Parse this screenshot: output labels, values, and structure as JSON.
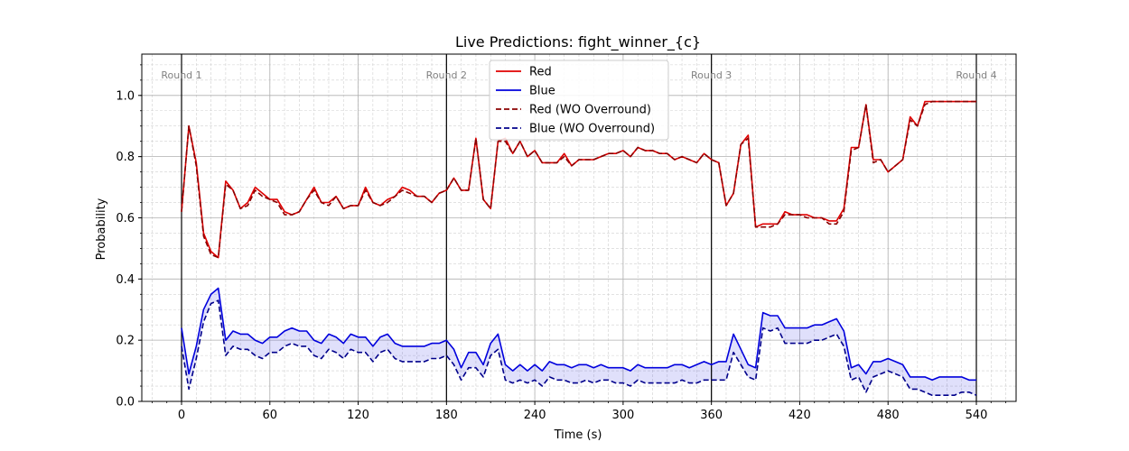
{
  "chart_data": {
    "type": "line",
    "title": "Live Predictions: fight_winner_{c}",
    "xlabel": "Time (s)",
    "ylabel": "Probability",
    "xlim": [
      -27,
      567
    ],
    "ylim": [
      0,
      1.135
    ],
    "xticks": [
      0,
      60,
      120,
      180,
      240,
      300,
      360,
      420,
      480,
      540
    ],
    "xtick_labels": [
      "0",
      "60",
      "120",
      "180",
      "240",
      "300",
      "360",
      "420",
      "480",
      "540"
    ],
    "yticks": [
      0.0,
      0.2,
      0.4,
      0.6,
      0.8,
      1.0
    ],
    "ytick_labels": [
      "0.0",
      "0.2",
      "0.4",
      "0.6",
      "0.8",
      "1.0"
    ],
    "grid": "major solid, minor dashed",
    "legend_position": "top-center",
    "round_markers": [
      {
        "x": 0,
        "label": "Round 1"
      },
      {
        "x": 180,
        "label": "Round 2"
      },
      {
        "x": 360,
        "label": "Round 3"
      },
      {
        "x": 540,
        "label": "Round 4"
      }
    ],
    "x": [
      0,
      5,
      10,
      15,
      20,
      25,
      30,
      35,
      40,
      45,
      50,
      55,
      60,
      65,
      70,
      75,
      80,
      85,
      90,
      95,
      100,
      105,
      110,
      115,
      120,
      125,
      130,
      135,
      140,
      145,
      150,
      155,
      160,
      165,
      170,
      175,
      180,
      185,
      190,
      195,
      200,
      205,
      210,
      215,
      220,
      225,
      230,
      235,
      240,
      245,
      250,
      255,
      260,
      265,
      270,
      275,
      280,
      285,
      290,
      295,
      300,
      305,
      310,
      315,
      320,
      325,
      330,
      335,
      340,
      345,
      350,
      355,
      360,
      365,
      370,
      375,
      380,
      385,
      390,
      395,
      400,
      405,
      410,
      415,
      420,
      425,
      430,
      435,
      440,
      445,
      450,
      455,
      460,
      465,
      470,
      475,
      480,
      485,
      490,
      495,
      500,
      505,
      510,
      515,
      520,
      525,
      530,
      535,
      540
    ],
    "series": [
      {
        "name": "Red",
        "color": "#e00000",
        "style": "solid",
        "values": [
          0.62,
          0.9,
          0.78,
          0.55,
          0.49,
          0.47,
          0.72,
          0.69,
          0.63,
          0.65,
          0.7,
          0.68,
          0.66,
          0.66,
          0.62,
          0.61,
          0.62,
          0.66,
          0.7,
          0.65,
          0.65,
          0.67,
          0.63,
          0.64,
          0.64,
          0.7,
          0.65,
          0.64,
          0.66,
          0.67,
          0.7,
          0.69,
          0.67,
          0.67,
          0.65,
          0.68,
          0.69,
          0.73,
          0.69,
          0.69,
          0.86,
          0.66,
          0.63,
          0.85,
          0.86,
          0.81,
          0.85,
          0.8,
          0.82,
          0.78,
          0.78,
          0.78,
          0.81,
          0.77,
          0.79,
          0.79,
          0.79,
          0.8,
          0.81,
          0.81,
          0.82,
          0.8,
          0.83,
          0.82,
          0.82,
          0.81,
          0.81,
          0.79,
          0.8,
          0.79,
          0.78,
          0.81,
          0.79,
          0.78,
          0.64,
          0.68,
          0.84,
          0.87,
          0.57,
          0.58,
          0.58,
          0.58,
          0.62,
          0.61,
          0.61,
          0.61,
          0.6,
          0.6,
          0.59,
          0.59,
          0.63,
          0.83,
          0.83,
          0.97,
          0.79,
          0.79,
          0.75,
          0.77,
          0.79,
          0.93,
          0.9,
          0.98,
          0.98,
          0.98,
          0.98,
          0.98,
          0.98,
          0.98,
          0.98
        ]
      },
      {
        "name": "Blue",
        "color": "#0000dd",
        "style": "solid",
        "values": [
          0.24,
          0.09,
          0.18,
          0.3,
          0.35,
          0.37,
          0.2,
          0.23,
          0.22,
          0.22,
          0.2,
          0.19,
          0.21,
          0.21,
          0.23,
          0.24,
          0.23,
          0.23,
          0.2,
          0.19,
          0.22,
          0.21,
          0.19,
          0.22,
          0.21,
          0.21,
          0.18,
          0.21,
          0.22,
          0.19,
          0.18,
          0.18,
          0.18,
          0.18,
          0.19,
          0.19,
          0.2,
          0.17,
          0.11,
          0.16,
          0.16,
          0.12,
          0.19,
          0.22,
          0.12,
          0.1,
          0.12,
          0.1,
          0.12,
          0.1,
          0.13,
          0.12,
          0.12,
          0.11,
          0.12,
          0.12,
          0.11,
          0.12,
          0.11,
          0.11,
          0.11,
          0.1,
          0.12,
          0.11,
          0.11,
          0.11,
          0.11,
          0.12,
          0.12,
          0.11,
          0.12,
          0.13,
          0.12,
          0.13,
          0.13,
          0.22,
          0.17,
          0.12,
          0.11,
          0.29,
          0.28,
          0.28,
          0.24,
          0.24,
          0.24,
          0.24,
          0.25,
          0.25,
          0.26,
          0.27,
          0.23,
          0.11,
          0.12,
          0.09,
          0.13,
          0.13,
          0.14,
          0.13,
          0.12,
          0.08,
          0.08,
          0.08,
          0.07,
          0.08,
          0.08,
          0.08,
          0.08,
          0.07,
          0.07
        ]
      },
      {
        "name": "Red (WO Overround)",
        "color": "#8b0000",
        "style": "dashed",
        "values": [
          0.62,
          0.9,
          0.77,
          0.54,
          0.48,
          0.47,
          0.71,
          0.69,
          0.63,
          0.64,
          0.69,
          0.67,
          0.66,
          0.65,
          0.61,
          0.61,
          0.62,
          0.66,
          0.69,
          0.65,
          0.64,
          0.67,
          0.63,
          0.64,
          0.64,
          0.69,
          0.65,
          0.64,
          0.65,
          0.67,
          0.69,
          0.68,
          0.67,
          0.67,
          0.65,
          0.68,
          0.69,
          0.73,
          0.69,
          0.69,
          0.86,
          0.66,
          0.63,
          0.85,
          0.85,
          0.81,
          0.85,
          0.8,
          0.82,
          0.78,
          0.78,
          0.78,
          0.8,
          0.77,
          0.79,
          0.79,
          0.79,
          0.8,
          0.81,
          0.81,
          0.82,
          0.8,
          0.83,
          0.82,
          0.82,
          0.81,
          0.81,
          0.79,
          0.8,
          0.79,
          0.78,
          0.81,
          0.79,
          0.78,
          0.64,
          0.68,
          0.84,
          0.86,
          0.57,
          0.57,
          0.57,
          0.58,
          0.61,
          0.61,
          0.61,
          0.6,
          0.6,
          0.6,
          0.58,
          0.58,
          0.62,
          0.82,
          0.83,
          0.97,
          0.78,
          0.79,
          0.75,
          0.77,
          0.79,
          0.92,
          0.9,
          0.97,
          0.98,
          0.98,
          0.98,
          0.98,
          0.98,
          0.98,
          0.98
        ]
      },
      {
        "name": "Blue (WO Overround)",
        "color": "#00008b",
        "style": "dashed",
        "values": [
          0.18,
          0.04,
          0.14,
          0.26,
          0.32,
          0.33,
          0.15,
          0.18,
          0.17,
          0.17,
          0.15,
          0.14,
          0.16,
          0.16,
          0.18,
          0.19,
          0.18,
          0.18,
          0.15,
          0.14,
          0.17,
          0.16,
          0.14,
          0.17,
          0.16,
          0.16,
          0.13,
          0.16,
          0.17,
          0.14,
          0.13,
          0.13,
          0.13,
          0.13,
          0.14,
          0.14,
          0.15,
          0.12,
          0.07,
          0.11,
          0.11,
          0.08,
          0.15,
          0.17,
          0.07,
          0.06,
          0.07,
          0.06,
          0.07,
          0.05,
          0.08,
          0.07,
          0.07,
          0.06,
          0.06,
          0.07,
          0.06,
          0.07,
          0.07,
          0.06,
          0.06,
          0.05,
          0.07,
          0.06,
          0.06,
          0.06,
          0.06,
          0.06,
          0.07,
          0.06,
          0.06,
          0.07,
          0.07,
          0.07,
          0.07,
          0.16,
          0.12,
          0.08,
          0.07,
          0.24,
          0.23,
          0.24,
          0.19,
          0.19,
          0.19,
          0.19,
          0.2,
          0.2,
          0.21,
          0.22,
          0.18,
          0.07,
          0.08,
          0.03,
          0.08,
          0.09,
          0.1,
          0.09,
          0.08,
          0.04,
          0.04,
          0.03,
          0.02,
          0.02,
          0.02,
          0.02,
          0.03,
          0.03,
          0.02
        ]
      }
    ],
    "fill_between": {
      "upper": "Blue",
      "lower": "Blue (WO Overround)",
      "color": "#0000dd",
      "opacity": 0.12
    }
  }
}
